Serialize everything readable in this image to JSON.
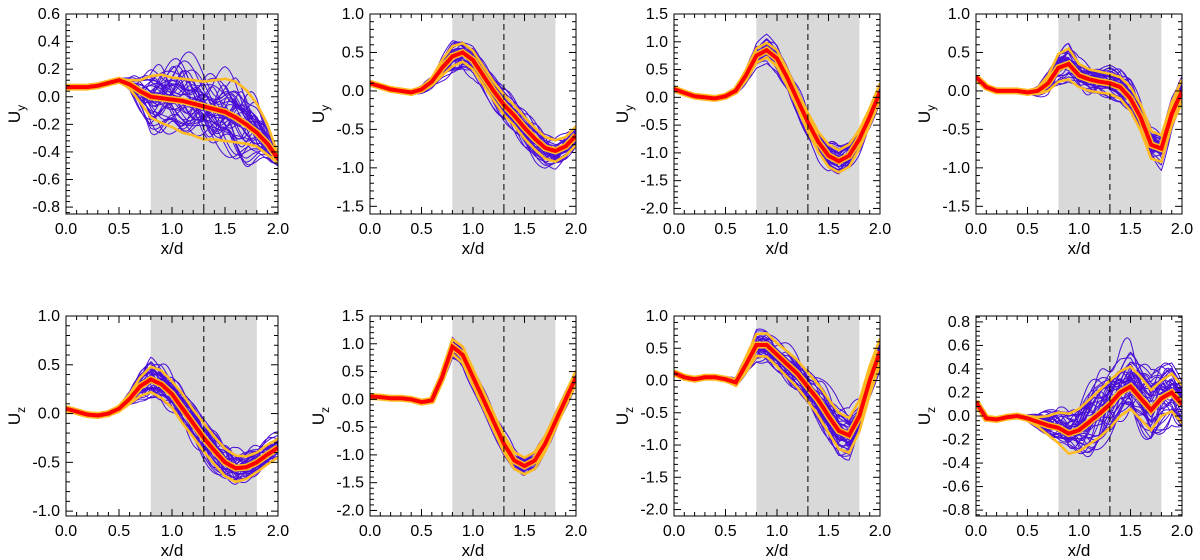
{
  "colors": {
    "ensemble": "#4b0fd6",
    "mean": "#ff0000",
    "band": "#ffbb22",
    "shade": "#d9d9d9",
    "axis": "#000000"
  },
  "chart_data": [
    {
      "type": "line",
      "ylabel": "U",
      "ylabel_sub": "y",
      "xlabel": "x/d",
      "xlim": [
        0,
        2
      ],
      "ylim": [
        -0.85,
        0.6
      ],
      "xticks": [
        "0.0",
        "0.5",
        "1.0",
        "1.5",
        "2.0"
      ],
      "yticks": [
        "-0.8",
        "-0.6",
        "-0.4",
        "-0.2",
        "0.0",
        "0.2",
        "0.4",
        "0.6"
      ],
      "shaded_region": [
        0.8,
        1.8
      ],
      "dashed_line_x": 1.3,
      "x": [
        0,
        0.1,
        0.2,
        0.3,
        0.4,
        0.5,
        0.6,
        0.7,
        0.8,
        0.9,
        1.0,
        1.1,
        1.2,
        1.3,
        1.4,
        1.5,
        1.6,
        1.7,
        1.8,
        1.9,
        2.0
      ],
      "mean": [
        0.07,
        0.07,
        0.07,
        0.08,
        0.1,
        0.12,
        0.09,
        0.04,
        0.0,
        -0.01,
        -0.02,
        -0.03,
        -0.05,
        -0.07,
        -0.09,
        -0.11,
        -0.15,
        -0.2,
        -0.26,
        -0.34,
        -0.45
      ],
      "spread_amp": [
        0.01,
        0.01,
        0.01,
        0.01,
        0.01,
        0.01,
        0.03,
        0.1,
        0.17,
        0.19,
        0.19,
        0.2,
        0.2,
        0.2,
        0.21,
        0.22,
        0.22,
        0.2,
        0.16,
        0.09,
        0.04
      ],
      "band_upper": [
        0.08,
        0.08,
        0.08,
        0.09,
        0.11,
        0.13,
        0.12,
        0.12,
        0.15,
        0.16,
        0.14,
        0.13,
        0.12,
        0.11,
        0.12,
        0.13,
        0.11,
        0.05,
        -0.05,
        -0.2,
        -0.42
      ],
      "band_lower": [
        0.06,
        0.06,
        0.06,
        0.07,
        0.09,
        0.11,
        0.06,
        -0.04,
        -0.15,
        -0.19,
        -0.22,
        -0.26,
        -0.28,
        -0.31,
        -0.31,
        -0.32,
        -0.33,
        -0.34,
        -0.36,
        -0.42,
        -0.48
      ]
    },
    {
      "type": "line",
      "ylabel": "U",
      "ylabel_sub": "y",
      "xlabel": "x/d",
      "xlim": [
        0,
        2
      ],
      "ylim": [
        -1.6,
        1.0
      ],
      "xticks": [
        "0.0",
        "0.5",
        "1.0",
        "1.5",
        "2.0"
      ],
      "yticks": [
        "-1.5",
        "-1.0",
        "-0.5",
        "0.0",
        "0.5",
        "1.0"
      ],
      "shaded_region": [
        0.8,
        1.8
      ],
      "dashed_line_x": 1.3,
      "x": [
        0,
        0.1,
        0.2,
        0.3,
        0.4,
        0.5,
        0.6,
        0.7,
        0.8,
        0.9,
        1.0,
        1.1,
        1.2,
        1.3,
        1.4,
        1.5,
        1.6,
        1.7,
        1.8,
        1.9,
        2.0
      ],
      "mean": [
        0.1,
        0.06,
        0.02,
        0.0,
        -0.02,
        0.02,
        0.12,
        0.3,
        0.45,
        0.5,
        0.4,
        0.2,
        0.0,
        -0.18,
        -0.32,
        -0.48,
        -0.62,
        -0.74,
        -0.78,
        -0.72,
        -0.58
      ],
      "spread_amp": [
        0.01,
        0.01,
        0.01,
        0.01,
        0.02,
        0.03,
        0.06,
        0.11,
        0.15,
        0.16,
        0.15,
        0.15,
        0.15,
        0.15,
        0.15,
        0.16,
        0.16,
        0.15,
        0.14,
        0.12,
        0.1
      ],
      "band_upper": [
        0.12,
        0.08,
        0.04,
        0.02,
        0.0,
        0.05,
        0.17,
        0.4,
        0.58,
        0.62,
        0.52,
        0.32,
        0.12,
        -0.05,
        -0.19,
        -0.34,
        -0.48,
        -0.6,
        -0.64,
        -0.6,
        -0.46
      ],
      "band_lower": [
        0.08,
        0.04,
        0.0,
        -0.02,
        -0.04,
        -0.01,
        0.07,
        0.2,
        0.32,
        0.38,
        0.28,
        0.08,
        -0.12,
        -0.31,
        -0.45,
        -0.62,
        -0.76,
        -0.88,
        -0.92,
        -0.84,
        -0.7
      ]
    },
    {
      "type": "line",
      "ylabel": "U",
      "ylabel_sub": "y",
      "xlabel": "x/d",
      "xlim": [
        0,
        2
      ],
      "ylim": [
        -2.1,
        1.5
      ],
      "xticks": [
        "0.0",
        "0.5",
        "1.0",
        "1.5",
        "2.0"
      ],
      "yticks": [
        "-2.0",
        "-1.5",
        "-1.0",
        "-0.5",
        "0.0",
        "0.5",
        "1.0",
        "1.5"
      ],
      "shaded_region": [
        0.8,
        1.8
      ],
      "dashed_line_x": 1.3,
      "x": [
        0,
        0.1,
        0.2,
        0.3,
        0.4,
        0.5,
        0.6,
        0.7,
        0.8,
        0.9,
        1.0,
        1.1,
        1.2,
        1.3,
        1.4,
        1.5,
        1.6,
        1.7,
        1.8,
        1.9,
        2.0
      ],
      "mean": [
        0.15,
        0.08,
        0.02,
        0.0,
        -0.02,
        0.02,
        0.12,
        0.4,
        0.75,
        0.85,
        0.7,
        0.35,
        -0.05,
        -0.45,
        -0.8,
        -1.05,
        -1.15,
        -1.05,
        -0.75,
        -0.35,
        0.1
      ],
      "spread_amp": [
        0.02,
        0.02,
        0.02,
        0.02,
        0.02,
        0.03,
        0.05,
        0.1,
        0.14,
        0.15,
        0.15,
        0.15,
        0.16,
        0.17,
        0.18,
        0.19,
        0.19,
        0.18,
        0.17,
        0.15,
        0.12
      ],
      "band_upper": [
        0.18,
        0.1,
        0.04,
        0.02,
        0.0,
        0.05,
        0.17,
        0.5,
        0.88,
        0.98,
        0.85,
        0.5,
        0.1,
        -0.28,
        -0.62,
        -0.85,
        -0.95,
        -0.85,
        -0.58,
        -0.2,
        0.25
      ],
      "band_lower": [
        0.12,
        0.06,
        0.0,
        -0.02,
        -0.04,
        -0.01,
        0.07,
        0.3,
        0.62,
        0.72,
        0.55,
        0.2,
        -0.2,
        -0.62,
        -0.98,
        -1.25,
        -1.35,
        -1.25,
        -0.92,
        -0.5,
        -0.05
      ]
    },
    {
      "type": "line",
      "ylabel": "U",
      "ylabel_sub": "y",
      "xlabel": "x/d",
      "xlim": [
        0,
        2
      ],
      "ylim": [
        -1.6,
        1.0
      ],
      "xticks": [
        "0.0",
        "0.5",
        "1.0",
        "1.5",
        "2.0"
      ],
      "yticks": [
        "-1.5",
        "-1.0",
        "-0.5",
        "0.0",
        "0.5",
        "1.0"
      ],
      "shaded_region": [
        0.8,
        1.8
      ],
      "dashed_line_x": 1.3,
      "x": [
        0,
        0.1,
        0.2,
        0.3,
        0.4,
        0.5,
        0.6,
        0.7,
        0.8,
        0.9,
        1.0,
        1.1,
        1.2,
        1.3,
        1.4,
        1.5,
        1.6,
        1.7,
        1.8,
        1.9,
        2.0
      ],
      "mean": [
        0.18,
        0.05,
        0.0,
        0.0,
        0.0,
        -0.02,
        0.0,
        0.1,
        0.3,
        0.35,
        0.2,
        0.15,
        0.12,
        0.1,
        0.05,
        -0.1,
        -0.35,
        -0.7,
        -0.75,
        -0.3,
        0.0
      ],
      "spread_amp": [
        0.01,
        0.01,
        0.01,
        0.01,
        0.01,
        0.02,
        0.04,
        0.1,
        0.17,
        0.18,
        0.15,
        0.15,
        0.15,
        0.15,
        0.15,
        0.16,
        0.18,
        0.18,
        0.17,
        0.14,
        0.12
      ],
      "band_upper": [
        0.19,
        0.06,
        0.01,
        0.01,
        0.01,
        0.0,
        0.04,
        0.2,
        0.48,
        0.55,
        0.35,
        0.28,
        0.25,
        0.22,
        0.18,
        0.05,
        -0.18,
        -0.52,
        -0.58,
        -0.15,
        0.15
      ],
      "band_lower": [
        0.17,
        0.04,
        -0.01,
        -0.01,
        -0.01,
        -0.04,
        -0.04,
        0.0,
        0.12,
        0.15,
        0.05,
        0.0,
        -0.02,
        -0.04,
        -0.1,
        -0.26,
        -0.52,
        -0.88,
        -0.92,
        -0.45,
        -0.15
      ]
    },
    {
      "type": "line",
      "ylabel": "U",
      "ylabel_sub": "z",
      "xlabel": "x/d",
      "xlim": [
        0,
        2
      ],
      "ylim": [
        -1.05,
        1.0
      ],
      "xticks": [
        "0.0",
        "0.5",
        "1.0",
        "1.5",
        "2.0"
      ],
      "yticks": [
        "-1.0",
        "-0.5",
        "0.0",
        "0.5",
        "1.0"
      ],
      "shaded_region": [
        0.8,
        1.8
      ],
      "dashed_line_x": 1.3,
      "x": [
        0,
        0.1,
        0.2,
        0.3,
        0.4,
        0.5,
        0.6,
        0.7,
        0.8,
        0.9,
        1.0,
        1.1,
        1.2,
        1.3,
        1.4,
        1.5,
        1.6,
        1.7,
        1.8,
        1.9,
        2.0
      ],
      "mean": [
        0.05,
        0.02,
        -0.01,
        -0.02,
        0.0,
        0.05,
        0.15,
        0.28,
        0.35,
        0.3,
        0.2,
        0.05,
        -0.1,
        -0.25,
        -0.38,
        -0.5,
        -0.56,
        -0.55,
        -0.5,
        -0.42,
        -0.35
      ],
      "spread_amp": [
        0.01,
        0.01,
        0.01,
        0.01,
        0.01,
        0.02,
        0.04,
        0.09,
        0.14,
        0.15,
        0.14,
        0.14,
        0.14,
        0.14,
        0.14,
        0.14,
        0.13,
        0.12,
        0.11,
        0.1,
        0.09
      ],
      "band_upper": [
        0.07,
        0.04,
        0.01,
        0.0,
        0.02,
        0.08,
        0.2,
        0.37,
        0.48,
        0.44,
        0.33,
        0.2,
        0.04,
        -0.1,
        -0.24,
        -0.36,
        -0.43,
        -0.44,
        -0.4,
        -0.32,
        -0.26
      ],
      "band_lower": [
        0.03,
        0.0,
        -0.03,
        -0.04,
        -0.02,
        0.02,
        0.1,
        0.18,
        0.22,
        0.16,
        0.06,
        -0.1,
        -0.24,
        -0.39,
        -0.52,
        -0.64,
        -0.7,
        -0.67,
        -0.6,
        -0.52,
        -0.45
      ]
    },
    {
      "type": "line",
      "ylabel": "U",
      "ylabel_sub": "z",
      "xlabel": "x/d",
      "xlim": [
        0,
        2
      ],
      "ylim": [
        -2.1,
        1.5
      ],
      "xticks": [
        "0.0",
        "0.5",
        "1.0",
        "1.5",
        "2.0"
      ],
      "yticks": [
        "-2.0",
        "-1.5",
        "-1.0",
        "-0.5",
        "0.0",
        "0.5",
        "1.0",
        "1.5"
      ],
      "shaded_region": [
        0.8,
        1.8
      ],
      "dashed_line_x": 1.3,
      "x": [
        0,
        0.1,
        0.2,
        0.3,
        0.4,
        0.5,
        0.6,
        0.7,
        0.8,
        0.9,
        1.0,
        1.1,
        1.2,
        1.3,
        1.4,
        1.5,
        1.6,
        1.7,
        1.8,
        1.9,
        2.0
      ],
      "mean": [
        0.05,
        0.04,
        0.02,
        0.02,
        0.0,
        -0.05,
        -0.02,
        0.4,
        0.95,
        0.8,
        0.4,
        0.0,
        -0.4,
        -0.8,
        -1.1,
        -1.2,
        -1.1,
        -0.8,
        -0.4,
        0.0,
        0.4
      ],
      "spread_amp": [
        0.01,
        0.01,
        0.01,
        0.01,
        0.01,
        0.02,
        0.04,
        0.1,
        0.14,
        0.14,
        0.14,
        0.14,
        0.14,
        0.14,
        0.14,
        0.14,
        0.14,
        0.13,
        0.12,
        0.11,
        0.1
      ],
      "band_upper": [
        0.07,
        0.06,
        0.04,
        0.04,
        0.02,
        -0.02,
        0.02,
        0.5,
        1.08,
        0.95,
        0.55,
        0.15,
        -0.25,
        -0.65,
        -0.95,
        -1.05,
        -0.95,
        -0.66,
        -0.27,
        0.12,
        0.52
      ],
      "band_lower": [
        0.03,
        0.02,
        0.0,
        0.0,
        -0.02,
        -0.08,
        -0.06,
        0.3,
        0.82,
        0.65,
        0.25,
        -0.15,
        -0.55,
        -0.95,
        -1.25,
        -1.35,
        -1.25,
        -0.94,
        -0.53,
        -0.12,
        0.28
      ]
    },
    {
      "type": "line",
      "ylabel": "U",
      "ylabel_sub": "z",
      "xlabel": "x/d",
      "xlim": [
        0,
        2
      ],
      "ylim": [
        -2.1,
        1.0
      ],
      "xticks": [
        "0.0",
        "0.5",
        "1.0",
        "1.5",
        "2.0"
      ],
      "yticks": [
        "-2.0",
        "-1.5",
        "-1.0",
        "-0.5",
        "0.0",
        "0.5",
        "1.0"
      ],
      "shaded_region": [
        0.8,
        1.8
      ],
      "dashed_line_x": 1.3,
      "x": [
        0,
        0.1,
        0.2,
        0.3,
        0.4,
        0.5,
        0.6,
        0.7,
        0.8,
        0.9,
        1.0,
        1.1,
        1.2,
        1.3,
        1.4,
        1.5,
        1.6,
        1.7,
        1.8,
        1.9,
        2.0
      ],
      "mean": [
        0.12,
        0.05,
        0.02,
        0.05,
        0.05,
        0.02,
        -0.03,
        0.25,
        0.55,
        0.55,
        0.4,
        0.25,
        0.1,
        -0.1,
        -0.3,
        -0.55,
        -0.78,
        -0.85,
        -0.55,
        0.0,
        0.45
      ],
      "spread_amp": [
        0.02,
        0.02,
        0.02,
        0.02,
        0.02,
        0.03,
        0.05,
        0.12,
        0.18,
        0.19,
        0.19,
        0.2,
        0.21,
        0.22,
        0.24,
        0.26,
        0.28,
        0.27,
        0.24,
        0.22,
        0.2
      ],
      "band_upper": [
        0.15,
        0.08,
        0.05,
        0.08,
        0.08,
        0.05,
        0.02,
        0.37,
        0.72,
        0.73,
        0.58,
        0.45,
        0.31,
        0.12,
        -0.06,
        -0.29,
        -0.5,
        -0.58,
        -0.31,
        0.22,
        0.65
      ],
      "band_lower": [
        0.09,
        0.02,
        -0.01,
        0.02,
        0.02,
        -0.01,
        -0.08,
        0.13,
        0.38,
        0.37,
        0.22,
        0.05,
        -0.11,
        -0.32,
        -0.54,
        -0.81,
        -1.06,
        -1.12,
        -0.79,
        -0.22,
        0.25
      ]
    },
    {
      "type": "line",
      "ylabel": "U",
      "ylabel_sub": "z",
      "xlabel": "x/d",
      "xlim": [
        0,
        2
      ],
      "ylim": [
        -0.85,
        0.85
      ],
      "xticks": [
        "0.0",
        "0.5",
        "1.0",
        "1.5",
        "2.0"
      ],
      "yticks": [
        "-0.8",
        "-0.6",
        "-0.4",
        "-0.2",
        "0.0",
        "0.2",
        "0.4",
        "0.6",
        "0.8"
      ],
      "shaded_region": [
        0.8,
        1.8
      ],
      "dashed_line_x": 1.3,
      "x": [
        0,
        0.1,
        0.2,
        0.3,
        0.4,
        0.5,
        0.6,
        0.7,
        0.8,
        0.9,
        1.0,
        1.1,
        1.2,
        1.3,
        1.4,
        1.5,
        1.6,
        1.7,
        1.8,
        1.9,
        2.0
      ],
      "mean": [
        0.12,
        -0.02,
        -0.03,
        -0.01,
        0.0,
        -0.02,
        -0.05,
        -0.08,
        -0.1,
        -0.15,
        -0.12,
        -0.05,
        0.02,
        0.1,
        0.2,
        0.25,
        0.15,
        0.05,
        0.15,
        0.2,
        0.1
      ],
      "spread_amp": [
        0.01,
        0.01,
        0.01,
        0.01,
        0.01,
        0.02,
        0.04,
        0.08,
        0.12,
        0.15,
        0.18,
        0.2,
        0.21,
        0.22,
        0.22,
        0.21,
        0.21,
        0.21,
        0.2,
        0.19,
        0.18
      ],
      "band_upper": [
        0.13,
        -0.01,
        -0.02,
        0.0,
        0.01,
        0.0,
        -0.01,
        0.0,
        0.03,
        0.02,
        0.06,
        0.14,
        0.22,
        0.3,
        0.38,
        0.42,
        0.33,
        0.22,
        0.3,
        0.36,
        0.26
      ],
      "band_lower": [
        0.11,
        -0.03,
        -0.04,
        -0.02,
        -0.01,
        -0.04,
        -0.09,
        -0.16,
        -0.23,
        -0.32,
        -0.3,
        -0.24,
        -0.18,
        -0.1,
        0.0,
        0.06,
        -0.03,
        -0.12,
        0.0,
        0.04,
        -0.06
      ]
    }
  ]
}
